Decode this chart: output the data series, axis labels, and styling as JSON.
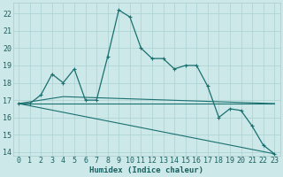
{
  "xlabel": "Humidex (Indice chaleur)",
  "background_color": "#cce8e8",
  "grid_color": "#b0d4d4",
  "line_color": "#1a7070",
  "xlim": [
    -0.5,
    23.5
  ],
  "ylim": [
    13.8,
    22.6
  ],
  "yticks": [
    14,
    15,
    16,
    17,
    18,
    19,
    20,
    21,
    22
  ],
  "xticks": [
    0,
    1,
    2,
    3,
    4,
    5,
    6,
    7,
    8,
    9,
    10,
    11,
    12,
    13,
    14,
    15,
    16,
    17,
    18,
    19,
    20,
    21,
    22,
    23
  ],
  "series1_x": [
    0,
    1,
    2,
    3,
    4,
    5,
    6,
    7,
    8,
    9,
    10,
    11,
    12,
    13,
    14,
    15,
    16,
    17,
    18,
    19,
    20,
    21,
    22,
    23
  ],
  "series1_y": [
    16.8,
    16.8,
    17.3,
    18.5,
    18.0,
    18.8,
    17.0,
    17.0,
    19.5,
    22.2,
    21.8,
    20.0,
    19.4,
    19.4,
    18.8,
    19.0,
    19.0,
    17.8,
    16.0,
    16.5,
    16.4,
    15.5,
    14.4,
    13.9
  ],
  "series2_x": [
    0,
    23
  ],
  "series2_y": [
    16.8,
    13.9
  ],
  "series3_x": [
    0,
    23
  ],
  "series3_y": [
    16.8,
    16.8
  ],
  "series4_x": [
    0,
    4,
    23
  ],
  "series4_y": [
    16.8,
    17.2,
    16.8
  ],
  "tick_fontsize": 6.0,
  "xlabel_fontsize": 6.5
}
